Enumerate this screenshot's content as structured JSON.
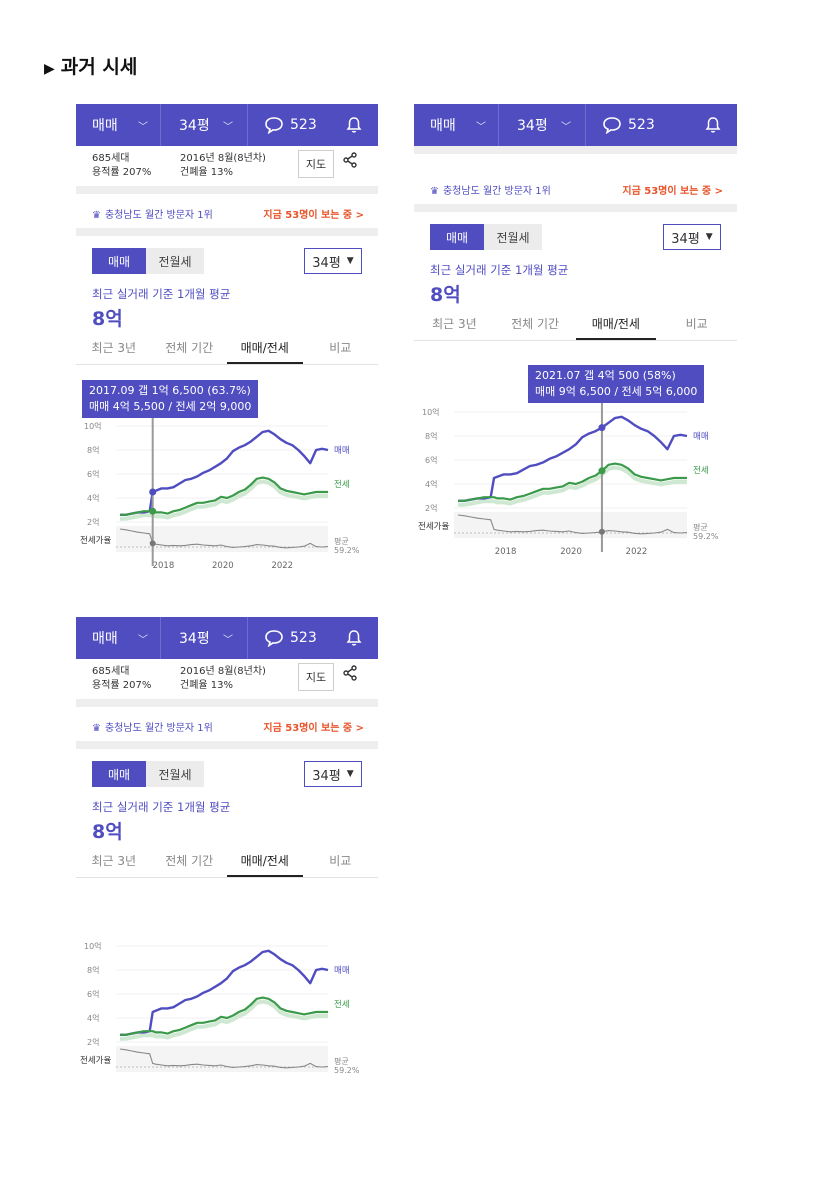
{
  "heading": "과거 시세",
  "topbar": {
    "deal": "매매",
    "size": "34평",
    "comments": "523"
  },
  "info": {
    "households": "685세대",
    "far": "용적률 207%",
    "built": "2016년 8월(8년차)",
    "bcr": "건폐율 13%",
    "map_btn": "지도"
  },
  "visit": {
    "left": "충청남도 월간 방문자 1위",
    "right": "지금 53명이 보는 중 >"
  },
  "seg": {
    "sale": "매매",
    "rent": "전월세"
  },
  "size_select": "34평",
  "caption": "최근 실거래 기준 1개월 평균",
  "price": "8억",
  "periods": [
    "최근 3년",
    "전체 기간",
    "매매/전세",
    "비교"
  ],
  "tooltips": {
    "p1": {
      "line1": "2017.09  갭 1억 6,500 (63.7%)",
      "line2": "매매 4억 5,500 / 전세 2억 9,000"
    },
    "p2": {
      "line1": "2021.07  갭 4억 500 (58%)",
      "line2": "매매 9억 6,500 / 전세 5억 6,000"
    }
  },
  "chart_data": {
    "type": "line",
    "x": [
      2016.6,
      2016.8,
      2017.0,
      2017.2,
      2017.4,
      2017.6,
      2017.7,
      2017.8,
      2018.0,
      2018.2,
      2018.4,
      2018.6,
      2018.8,
      2019.0,
      2019.2,
      2019.4,
      2019.6,
      2019.8,
      2020.0,
      2020.2,
      2020.4,
      2020.6,
      2020.8,
      2021.0,
      2021.2,
      2021.4,
      2021.6,
      2021.8,
      2022.0,
      2022.2,
      2022.4,
      2022.6,
      2022.8,
      2023.0,
      2023.2,
      2023.4,
      2023.6
    ],
    "series": [
      {
        "name": "매매",
        "values": [
          2.6,
          2.6,
          2.7,
          2.8,
          2.8,
          2.9,
          4.5,
          4.6,
          4.8,
          4.8,
          4.9,
          5.2,
          5.5,
          5.6,
          5.8,
          6.1,
          6.3,
          6.6,
          6.9,
          7.3,
          7.9,
          8.2,
          8.4,
          8.7,
          9.1,
          9.5,
          9.6,
          9.3,
          8.9,
          8.6,
          8.4,
          8.0,
          7.5,
          6.9,
          8.0,
          8.1,
          8.0
        ]
      },
      {
        "name": "전세",
        "values": [
          2.6,
          2.6,
          2.7,
          2.8,
          2.9,
          2.9,
          2.9,
          2.8,
          2.8,
          2.7,
          2.9,
          3.0,
          3.2,
          3.4,
          3.6,
          3.6,
          3.7,
          3.8,
          4.1,
          4.0,
          4.2,
          4.5,
          4.7,
          5.1,
          5.6,
          5.7,
          5.6,
          5.3,
          4.8,
          4.6,
          4.5,
          4.4,
          4.3,
          4.4,
          4.5,
          4.5,
          4.5
        ]
      },
      {
        "name": "전세가율",
        "values": [
          100,
          98,
          95,
          92,
          90,
          88,
          64,
          62,
          60,
          58,
          59,
          58,
          59,
          61,
          62,
          60,
          59,
          58,
          60,
          56,
          54,
          55,
          56,
          58,
          61,
          60,
          58,
          57,
          54,
          53,
          54,
          55,
          57,
          64,
          56,
          55,
          56
        ]
      }
    ],
    "yticks": [
      "10억",
      "8억",
      "6억",
      "4억",
      "2억"
    ],
    "xticks": [
      "2018",
      "2020",
      "2022"
    ],
    "ylim": [
      2,
      10
    ],
    "series_labels": {
      "sale": "매매",
      "rent": "전세"
    },
    "ratio_label": "전세가율",
    "avg_label": "평균",
    "avg_value": "59.2%",
    "colors": {
      "sale": "#4f4dc0",
      "rent": "#3a9a4a",
      "ratio": "#888888"
    }
  }
}
